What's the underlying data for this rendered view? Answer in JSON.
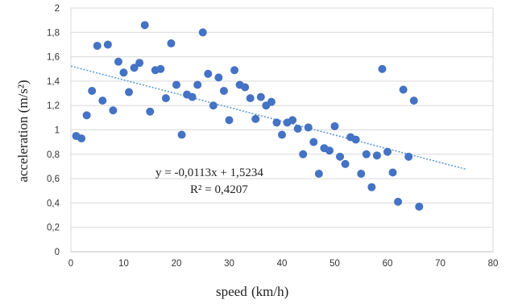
{
  "chart_data": {
    "type": "scatter",
    "title": "",
    "xlabel": "speed",
    "xlabel_unit": "(km/h)",
    "ylabel": "acceleration (m/s²)",
    "xlim": [
      0,
      80
    ],
    "ylim": [
      0,
      2
    ],
    "xticks": [
      0,
      10,
      20,
      30,
      40,
      50,
      60,
      70,
      80
    ],
    "yticks": [
      0,
      0.2,
      0.4,
      0.6,
      0.8,
      1,
      1.2,
      1.4,
      1.6,
      1.8,
      2
    ],
    "x_tick_labels": [
      "0",
      "10",
      "20",
      "30",
      "40",
      "50",
      "60",
      "70",
      "80"
    ],
    "y_tick_labels": [
      "0",
      "0,2",
      "0,4",
      "0,6",
      "0,8",
      "1",
      "1,2",
      "1,4",
      "1,6",
      "1,8",
      "2"
    ],
    "grid": "horizontal",
    "legend": "none",
    "marker_color": "#4472c4",
    "trendline_color": "#5b9bd5",
    "trendline": {
      "slope": -0.0113,
      "intercept": 1.5234,
      "x_range": [
        0,
        75
      ]
    },
    "equation_text": "y = -0,0113x + 1,5234",
    "r2_text": "R² = 0,4207",
    "points": [
      [
        1,
        0.95
      ],
      [
        2,
        0.93
      ],
      [
        3,
        1.12
      ],
      [
        4,
        1.32
      ],
      [
        5,
        1.69
      ],
      [
        6,
        1.24
      ],
      [
        7,
        1.7
      ],
      [
        8,
        1.16
      ],
      [
        9,
        1.56
      ],
      [
        10,
        1.47
      ],
      [
        11,
        1.31
      ],
      [
        12,
        1.51
      ],
      [
        13,
        1.55
      ],
      [
        14,
        1.86
      ],
      [
        15,
        1.15
      ],
      [
        16,
        1.49
      ],
      [
        17,
        1.5
      ],
      [
        18,
        1.26
      ],
      [
        19,
        1.71
      ],
      [
        20,
        1.37
      ],
      [
        21,
        0.96
      ],
      [
        22,
        1.29
      ],
      [
        23,
        1.27
      ],
      [
        24,
        1.37
      ],
      [
        25,
        1.8
      ],
      [
        26,
        1.46
      ],
      [
        27,
        1.2
      ],
      [
        28,
        1.43
      ],
      [
        29,
        1.32
      ],
      [
        30,
        1.08
      ],
      [
        31,
        1.49
      ],
      [
        32,
        1.37
      ],
      [
        33,
        1.35
      ],
      [
        34,
        1.26
      ],
      [
        35,
        1.09
      ],
      [
        36,
        1.27
      ],
      [
        37,
        1.2
      ],
      [
        38,
        1.23
      ],
      [
        39,
        1.06
      ],
      [
        40,
        0.96
      ],
      [
        41,
        1.06
      ],
      [
        42,
        1.08
      ],
      [
        43,
        1.01
      ],
      [
        44,
        0.8
      ],
      [
        45,
        1.02
      ],
      [
        46,
        0.9
      ],
      [
        47,
        0.64
      ],
      [
        48,
        0.85
      ],
      [
        49,
        0.83
      ],
      [
        50,
        1.03
      ],
      [
        51,
        0.78
      ],
      [
        52,
        0.72
      ],
      [
        53,
        0.94
      ],
      [
        54,
        0.92
      ],
      [
        55,
        0.64
      ],
      [
        56,
        0.8
      ],
      [
        57,
        0.53
      ],
      [
        58,
        0.79
      ],
      [
        59,
        1.5
      ],
      [
        60,
        0.82
      ],
      [
        61,
        0.65
      ],
      [
        62,
        0.41
      ],
      [
        63,
        1.33
      ],
      [
        64,
        0.78
      ],
      [
        65,
        1.24
      ],
      [
        66,
        0.37
      ]
    ]
  }
}
